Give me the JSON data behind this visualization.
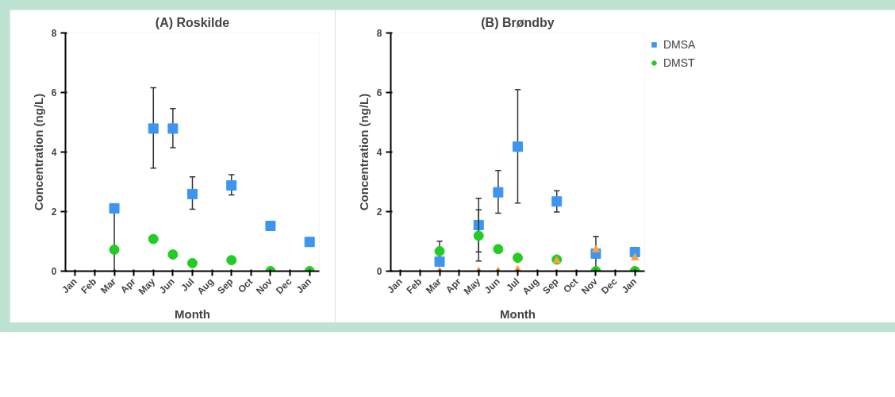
{
  "chart_data": [
    {
      "type": "scatter",
      "title": "(A) Roskilde",
      "xlabel": "Month",
      "ylabel": "Concentration (ng/L)",
      "categories": [
        "Jan",
        "Feb",
        "Mar",
        "Apr",
        "May",
        "Jun",
        "Jul",
        "Aug",
        "Sep",
        "Oct",
        "Nov",
        "Dec",
        "Jan"
      ],
      "ylim": [
        0,
        8
      ],
      "yticks": [
        0,
        2,
        4,
        6,
        8
      ],
      "grid": false,
      "legend": false,
      "series": [
        {
          "color": "#3c96f0",
          "marker": "square",
          "values": [
            null,
            null,
            2.11,
            null,
            4.79,
            4.79,
            2.59,
            null,
            2.88,
            null,
            1.52,
            null,
            0.98
          ],
          "errors": [
            null,
            null,
            [
              0,
              2.11
            ],
            null,
            [
              3.46,
              6.16
            ],
            [
              4.15,
              5.46
            ],
            [
              2.08,
              3.17
            ],
            null,
            [
              2.56,
              3.24
            ],
            null,
            null,
            null,
            null
          ]
        },
        {
          "color": "#22cc22",
          "marker": "circle",
          "values": [
            null,
            null,
            0.72,
            null,
            1.08,
            0.56,
            0.27,
            null,
            0.37,
            null,
            0,
            null,
            0
          ]
        }
      ]
    },
    {
      "type": "scatter",
      "title": "(B) Brøndby",
      "xlabel": "Month",
      "ylabel": "Concentration (ng/L)",
      "categories": [
        "Jan",
        "Feb",
        "Mar",
        "Apr",
        "May",
        "Jun",
        "Jul",
        "Aug",
        "Sep",
        "Oct",
        "Nov",
        "Dec",
        "Jan"
      ],
      "ylim": [
        0,
        8
      ],
      "yticks": [
        0,
        2,
        4,
        6,
        8
      ],
      "grid": false,
      "legend": "right",
      "series": [
        {
          "name": "DMSA",
          "color": "#3c96f0",
          "marker": "square",
          "values": [
            null,
            null,
            0.32,
            null,
            1.55,
            2.65,
            4.18,
            null,
            2.34,
            null,
            0.59,
            null,
            0.64
          ],
          "errors": [
            null,
            null,
            [
              0.32,
              1.01
            ],
            null,
            [
              0.65,
              2.45
            ],
            [
              1.95,
              3.38
            ],
            [
              2.29,
              6.1
            ],
            null,
            [
              1.99,
              2.7
            ],
            null,
            [
              0,
              1.17
            ],
            null,
            null
          ]
        },
        {
          "name": "DMST",
          "color": "#22cc22",
          "marker": "circle",
          "values": [
            null,
            null,
            0.67,
            null,
            1.19,
            0.74,
            0.45,
            null,
            0.39,
            null,
            0,
            null,
            0
          ],
          "errors": [
            null,
            null,
            null,
            null,
            [
              0.34,
              2.06
            ],
            null,
            null,
            null,
            null,
            null,
            null,
            null,
            null
          ]
        },
        {
          "color": "#ffa040",
          "marker": "triangle",
          "values": [
            null,
            null,
            0,
            null,
            0,
            0,
            0.05,
            null,
            0.35,
            null,
            0.72,
            null,
            0.45
          ]
        }
      ]
    }
  ]
}
